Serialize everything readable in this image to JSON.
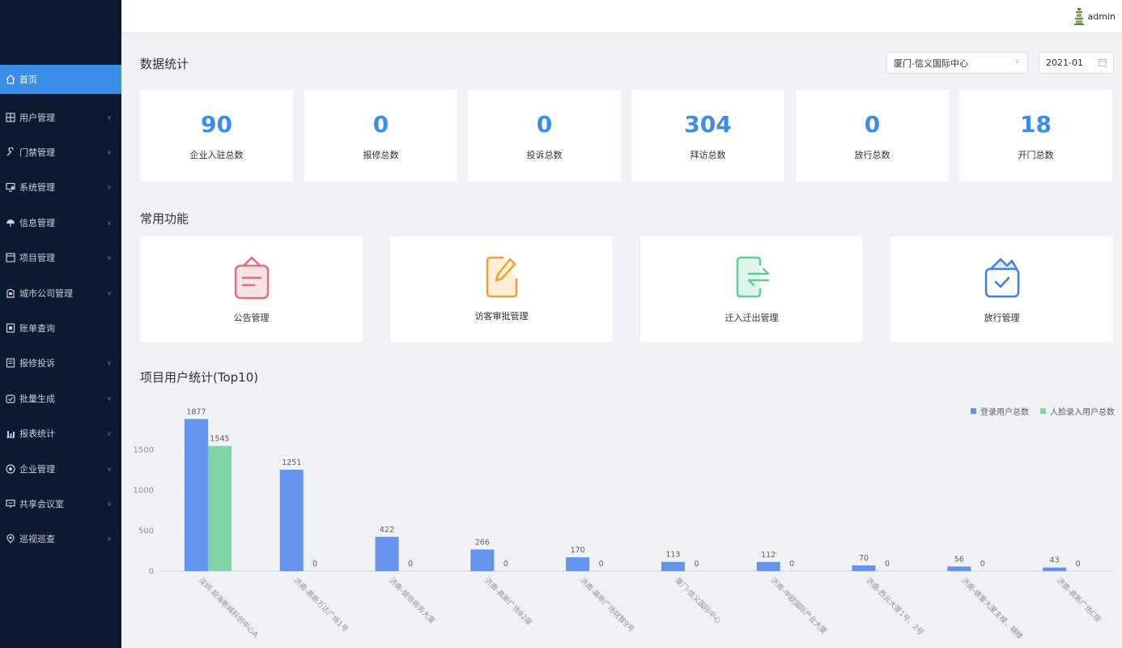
{
  "sidebar": {
    "items": [
      {
        "label": "首页",
        "icon": "home-icon",
        "active": true,
        "expandable": false
      },
      {
        "label": "用户管理",
        "icon": "users-icon",
        "expandable": true
      },
      {
        "label": "门禁管理",
        "icon": "wrench-icon",
        "expandable": true
      },
      {
        "label": "系统管理",
        "icon": "monitor-icon",
        "expandable": true
      },
      {
        "label": "信息管理",
        "icon": "umbrella-icon",
        "expandable": true
      },
      {
        "label": "项目管理",
        "icon": "window-icon",
        "expandable": true
      },
      {
        "label": "城市公司管理",
        "icon": "building-icon",
        "expandable": true
      },
      {
        "label": "账单查询",
        "icon": "bill-icon",
        "expandable": false
      },
      {
        "label": "报修投诉",
        "icon": "document-icon",
        "expandable": true
      },
      {
        "label": "批量生成",
        "icon": "batch-icon",
        "expandable": true
      },
      {
        "label": "报表统计",
        "icon": "bar-chart-icon",
        "expandable": true
      },
      {
        "label": "企业管理",
        "icon": "enterprise-icon",
        "expandable": true
      },
      {
        "label": "共享会议室",
        "icon": "meeting-icon",
        "expandable": true
      },
      {
        "label": "巡视巡查",
        "icon": "location-icon",
        "expandable": true
      }
    ]
  },
  "header": {
    "username": "admin"
  },
  "stats": {
    "title": "数据统计",
    "project_select": "厦门-信义国际中心",
    "month": "2021-01",
    "cards": [
      {
        "value": "90",
        "label": "企业入驻总数"
      },
      {
        "value": "0",
        "label": "报修总数"
      },
      {
        "value": "0",
        "label": "投诉总数"
      },
      {
        "value": "304",
        "label": "拜访总数"
      },
      {
        "value": "0",
        "label": "放行总数"
      },
      {
        "value": "18",
        "label": "开门总数"
      }
    ]
  },
  "functions": {
    "title": "常用功能",
    "items": [
      {
        "label": "公告管理",
        "icon": "announcement-icon",
        "color": "#e0707a"
      },
      {
        "label": "访客审批管理",
        "icon": "edit-icon",
        "color": "#eda33b"
      },
      {
        "label": "迁入迁出管理",
        "icon": "transfer-icon",
        "color": "#5fcf9a"
      },
      {
        "label": "放行管理",
        "icon": "release-icon",
        "color": "#3f7fe8"
      }
    ]
  },
  "chart_section": {
    "title": "项目用户统计(Top10)"
  },
  "chart_data": {
    "type": "bar",
    "title": "",
    "xlabel": "",
    "ylabel": "",
    "ylim": [
      0,
      2000
    ],
    "yticks": [
      0,
      500,
      1000,
      1500
    ],
    "legend_position": "top-right",
    "grid": true,
    "categories": [
      "深圳-前海新城科创中心A",
      "济南-高新万达广场1号",
      "济南-诚信商务大厦",
      "济南-高新广场B2座",
      "济南-高新广场财智9号",
      "厦门-信义国际中心",
      "济南-中欧国际产业大厦",
      "济南-西元大厦1号、2号",
      "济南-德爱大厦主楼、辅楼",
      "济南-高新广场C座"
    ],
    "series": [
      {
        "name": "登录用户总数",
        "color": "#6393ed",
        "values": [
          1877,
          1251,
          422,
          266,
          170,
          113,
          112,
          70,
          56,
          43
        ]
      },
      {
        "name": "人脸录入用户总数",
        "color": "#7fd4a3",
        "values": [
          1545,
          0,
          0,
          0,
          0,
          0,
          0,
          0,
          0,
          0
        ]
      }
    ]
  }
}
